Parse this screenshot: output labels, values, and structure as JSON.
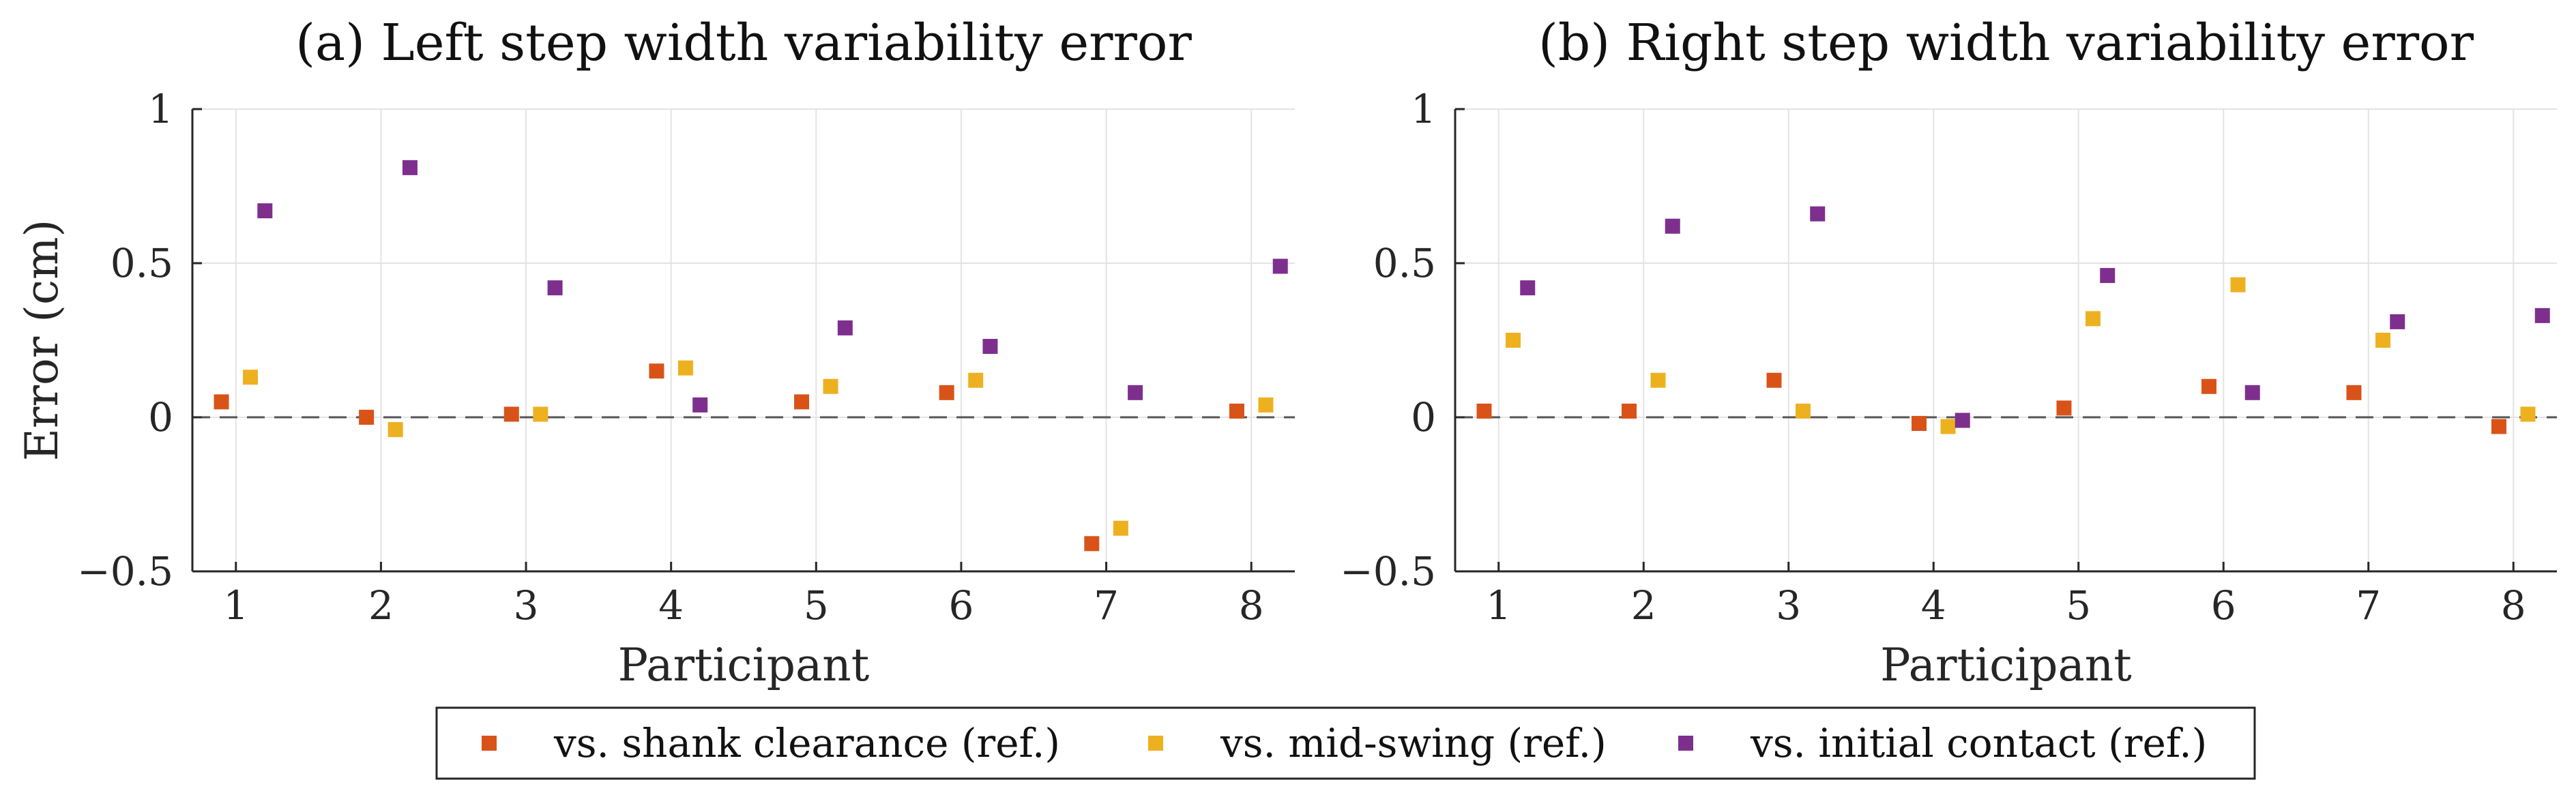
{
  "chart_data": [
    {
      "type": "scatter",
      "title": "(a) Left step width variability error",
      "xlabel": "Participant",
      "ylabel": "Error (cm)",
      "xlim": [
        0.7,
        8.3
      ],
      "ylim": [
        -0.5,
        1
      ],
      "xticks": [
        1,
        2,
        3,
        4,
        5,
        6,
        7,
        8
      ],
      "xtick_labels": [
        "1",
        "2",
        "3",
        "4",
        "5",
        "6",
        "7",
        "8"
      ],
      "yticks": [
        -0.5,
        0,
        0.5,
        1
      ],
      "ytick_labels": [
        "−0.5",
        "0",
        "0.5",
        "1"
      ],
      "grid": true,
      "reference_line": 0,
      "series": [
        {
          "name": "vs. shank clearance (ref.)",
          "color": "#D95319",
          "offset": -0.1,
          "values": [
            0.05,
            0.0,
            0.01,
            0.15,
            0.05,
            0.08,
            -0.41,
            0.02
          ]
        },
        {
          "name": "vs. mid-swing (ref.)",
          "color": "#EDB120",
          "offset": 0.1,
          "values": [
            0.13,
            -0.04,
            0.01,
            0.16,
            0.1,
            0.12,
            -0.36,
            0.04
          ]
        },
        {
          "name": "vs. initial contact (ref.)",
          "color": "#7E2F8E",
          "offset": 0.2,
          "values": [
            0.67,
            0.81,
            0.42,
            0.04,
            0.29,
            0.23,
            0.08,
            0.49
          ]
        }
      ]
    },
    {
      "type": "scatter",
      "title": "(b) Right step width variability error",
      "xlabel": "Participant",
      "ylabel": "",
      "xlim": [
        0.7,
        8.3
      ],
      "ylim": [
        -0.5,
        1
      ],
      "xticks": [
        1,
        2,
        3,
        4,
        5,
        6,
        7,
        8
      ],
      "xtick_labels": [
        "1",
        "2",
        "3",
        "4",
        "5",
        "6",
        "7",
        "8"
      ],
      "yticks": [
        -0.5,
        0,
        0.5,
        1
      ],
      "ytick_labels": [
        "−0.5",
        "0",
        "0.5",
        "1"
      ],
      "grid": true,
      "reference_line": 0,
      "series": [
        {
          "name": "vs. shank clearance (ref.)",
          "color": "#D95319",
          "offset": -0.1,
          "values": [
            0.02,
            0.02,
            0.12,
            -0.02,
            0.03,
            0.1,
            0.08,
            -0.03
          ]
        },
        {
          "name": "vs. mid-swing (ref.)",
          "color": "#EDB120",
          "offset": 0.1,
          "values": [
            0.25,
            0.12,
            0.02,
            -0.03,
            0.32,
            0.43,
            0.25,
            0.01
          ]
        },
        {
          "name": "vs. initial contact (ref.)",
          "color": "#7E2F8E",
          "offset": 0.2,
          "values": [
            0.42,
            0.62,
            0.66,
            -0.01,
            0.46,
            0.08,
            0.31,
            0.33
          ]
        }
      ]
    }
  ],
  "legend": {
    "placement": "bottom-center",
    "entries": [
      {
        "label": "vs. shank clearance (ref.)",
        "color": "#D95319"
      },
      {
        "label": "vs. mid-swing (ref.)",
        "color": "#EDB120"
      },
      {
        "label": "vs. initial contact (ref.)",
        "color": "#7E2F8E"
      }
    ]
  }
}
